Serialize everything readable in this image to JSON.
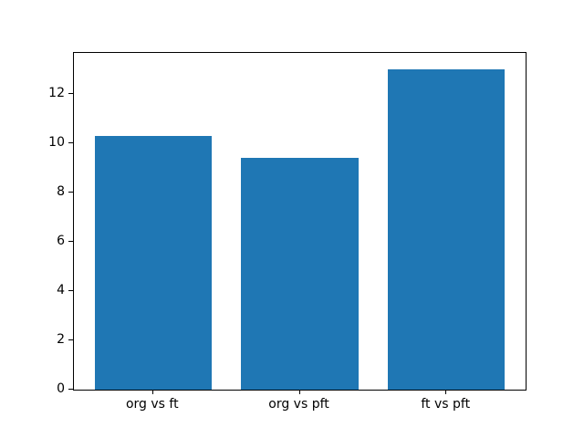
{
  "figure": {
    "background": "#ffffff"
  },
  "chart_data": {
    "type": "bar",
    "title": "",
    "categories": [
      "org vs ft",
      "org vs pft",
      "ft vs pft"
    ],
    "values": [
      10.3,
      9.4,
      13.0
    ],
    "series_name": "",
    "bar_color": "#1f77b4",
    "xlabel": "",
    "ylabel": "",
    "ylim": [
      0,
      13.65
    ],
    "yticks": [
      0,
      2,
      4,
      6,
      8,
      10,
      12
    ],
    "xlim": [
      -0.54,
      2.54
    ],
    "bar_width": 0.8,
    "grid": false,
    "legend": "none",
    "axis_color": "#000000",
    "tick_label_color": "#000000"
  }
}
